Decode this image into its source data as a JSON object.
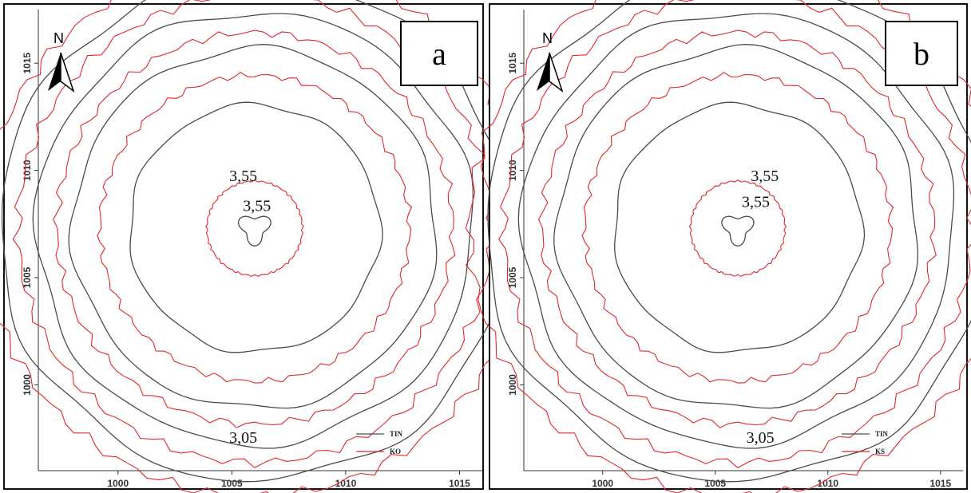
{
  "chart_data": [
    {
      "type": "contour",
      "panel_label": "a",
      "north_label": "N",
      "x_ticks": [
        1000,
        1005,
        1010,
        1015
      ],
      "y_ticks": [
        1000,
        1005,
        1010,
        1015
      ],
      "xlim": [
        996.5,
        1016
      ],
      "ylim": [
        996,
        1017.5
      ],
      "center": [
        1006.0,
        1007.3
      ],
      "contour_labels": [
        {
          "text": "3,55",
          "x": 1005.5,
          "y": 1009.5
        },
        {
          "text": "3,55",
          "x": 1006.1,
          "y": 1008.1
        },
        {
          "text": "3,05",
          "x": 1005.5,
          "y": 997.3
        }
      ],
      "series": [
        {
          "name": "TIN",
          "color": "#4a4a4a",
          "radii": [
            0.6,
            5.5,
            8.0,
            9.6,
            11.2
          ],
          "wobble": 0.08
        },
        {
          "name": "KO",
          "color": "#e0282c",
          "radii": [
            2.1,
            6.8,
            8.7,
            10.4,
            11.9
          ],
          "wobble": 0.06
        }
      ],
      "legend": [
        "TIN",
        "KO"
      ]
    },
    {
      "type": "contour",
      "panel_label": "b",
      "north_label": "N",
      "x_ticks": [
        1000,
        1005,
        1010,
        1015
      ],
      "y_ticks": [
        1000,
        1005,
        1010,
        1015
      ],
      "xlim": [
        996.5,
        1016
      ],
      "ylim": [
        996,
        1017.5
      ],
      "center": [
        1006.0,
        1007.3
      ],
      "contour_labels": [
        {
          "text": "3,55",
          "x": 1007.2,
          "y": 1009.5
        },
        {
          "text": "3,55",
          "x": 1006.8,
          "y": 1008.3
        },
        {
          "text": "3,05",
          "x": 1007.0,
          "y": 997.3
        }
      ],
      "series": [
        {
          "name": "TIN",
          "color": "#4a4a4a",
          "radii": [
            0.6,
            5.5,
            8.0,
            9.6,
            11.2
          ],
          "wobble": 0.08
        },
        {
          "name": "KS",
          "color": "#e0282c",
          "radii": [
            2.1,
            6.8,
            8.7,
            10.4,
            11.9
          ],
          "wobble": 0.06
        }
      ],
      "legend": [
        "TIN",
        "KS"
      ]
    }
  ]
}
